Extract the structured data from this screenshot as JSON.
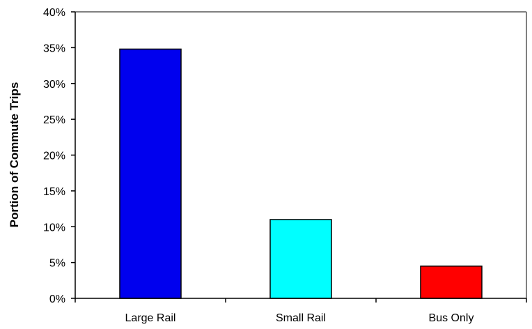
{
  "chart_data": {
    "type": "bar",
    "title": "",
    "xlabel": "",
    "ylabel": "Portion of Commute Trips",
    "categories": [
      "Large Rail",
      "Small Rail",
      "Bus Only"
    ],
    "values": [
      0.348,
      0.11,
      0.045
    ],
    "colors": [
      "#0000ee",
      "#00ffff",
      "#ff0000"
    ],
    "ylim": [
      0,
      0.4
    ],
    "yticks": [
      0,
      0.05,
      0.1,
      0.15,
      0.2,
      0.25,
      0.3,
      0.35,
      0.4
    ],
    "ytick_labels": [
      "0%",
      "5%",
      "10%",
      "15%",
      "20%",
      "25%",
      "30%",
      "35%",
      "40%"
    ],
    "grid": false,
    "legend": "none"
  }
}
